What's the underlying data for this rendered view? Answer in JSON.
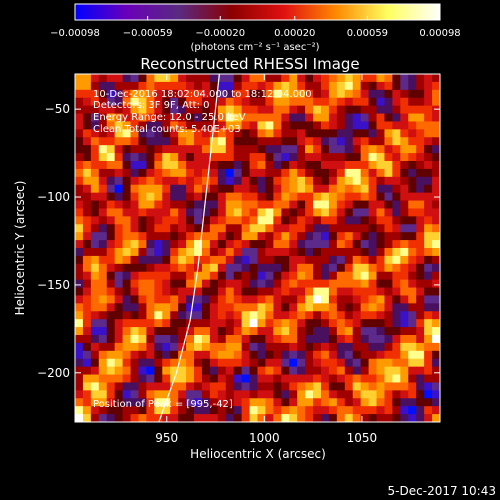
{
  "chart_data": {
    "type": "heatmap",
    "title": "Reconstructed RHESSI Image",
    "xlabel": "Heliocentric X (arcsec)",
    "ylabel": "Heliocentric Y (arcsec)",
    "xlim": [
      903,
      1090
    ],
    "ylim": [
      -228,
      -30
    ],
    "x_ticks": [
      950,
      1000,
      1050
    ],
    "x_tick_labels": [
      "950",
      "1000",
      "1050"
    ],
    "y_ticks": [
      -50,
      -100,
      -150,
      -200
    ],
    "y_tick_labels": [
      "−50",
      "−100",
      "−150",
      "−200"
    ],
    "colorbar": {
      "min": -0.00098,
      "max": 0.00098,
      "tick_labels": [
        "−0.00098",
        "−0.00059",
        "−0.00020",
        "0.00020",
        "0.00059",
        "0.00098"
      ],
      "unit_label": "(photons cm⁻² s⁻¹ asec⁻²)",
      "colors": [
        "#0000ff",
        "#6a00b8",
        "#5a2a80",
        "#8a0000",
        "#e01010",
        "#ff8800",
        "#ffff60",
        "#ffffff"
      ]
    },
    "annotations": [
      "10-Dec-2016 18:02:04.000 to 18:12:04.000",
      "Detectors: 3F 9F, Att: 0",
      "Energy Range: 12.0 - 25.0 keV",
      "Clean     Total counts: 5.40E+03",
      "Position of Peak = [995,-42]"
    ],
    "limb_curve": [
      [
        946,
        -228
      ],
      [
        955,
        -200
      ],
      [
        962,
        -170
      ],
      [
        966,
        -140
      ],
      [
        969,
        -110
      ],
      [
        972,
        -80
      ],
      [
        975,
        -50
      ],
      [
        977,
        -30
      ]
    ]
  },
  "footer": {
    "date": "5-Dec-2017 10:43"
  }
}
